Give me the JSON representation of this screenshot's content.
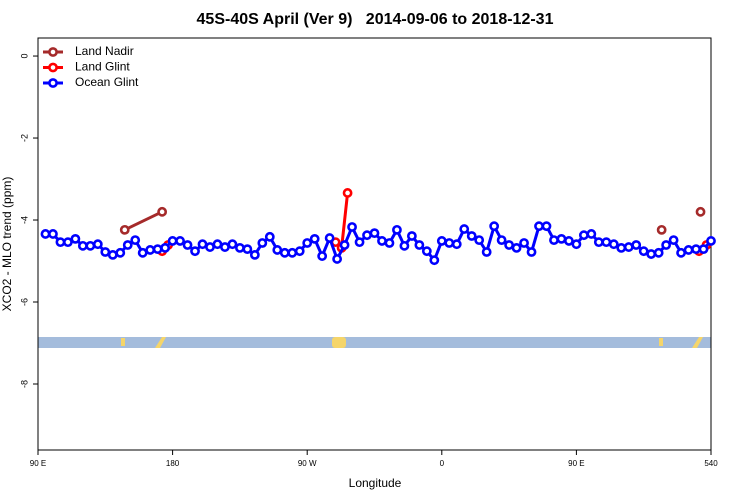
{
  "chart_data": {
    "type": "line",
    "title": "45S-40S April (Ver 9)   2014-09-06 to 2018-12-31",
    "x_label": "Longitude",
    "y_label": "XCO2 - MLO trend (ppm)",
    "xlim": [
      90,
      540
    ],
    "xticks": [
      {
        "value": 90,
        "label": "90 E"
      },
      180,
      {
        "value": 270,
        "label": "90 W"
      },
      {
        "value": 360,
        "label": "0"
      },
      {
        "value": 450,
        "label": "90 E"
      },
      540
    ],
    "ylim": [
      -9.61,
      0.44
    ],
    "yticks": [
      0,
      -2,
      -4,
      -6,
      -8
    ],
    "legend": "top-left",
    "series": [
      {
        "name": "Land Nadir",
        "color": "#a52a2a",
        "x": [
          148,
          173,
          null,
          507,
          null,
          533
        ],
        "values": [
          -4.24,
          -3.8,
          null,
          -4.24,
          null,
          -3.8
        ]
      },
      {
        "name": "Land Glint",
        "color": "#ff0000",
        "x": [
          173,
          177,
          null,
          289,
          293,
          297,
          null,
          532,
          537
        ],
        "values": [
          -4.76,
          -4.61,
          null,
          -4.54,
          -4.68,
          -3.34,
          null,
          -4.76,
          -4.61
        ]
      },
      {
        "name": "Ocean Glint",
        "color": "#0000ff",
        "x": [
          95,
          100,
          105,
          110,
          115,
          120,
          125,
          130,
          135,
          140,
          145,
          150,
          155,
          160,
          165,
          170,
          175,
          180,
          185,
          190,
          195,
          200,
          205,
          210,
          215,
          220,
          225,
          230,
          235,
          240,
          245,
          250,
          255,
          260,
          265,
          270,
          275,
          280,
          285,
          290,
          295,
          300,
          305,
          310,
          315,
          320,
          325,
          330,
          335,
          340,
          345,
          350,
          355,
          360,
          365,
          370,
          375,
          380,
          385,
          390,
          395,
          400,
          405,
          410,
          415,
          420,
          425,
          430,
          435,
          440,
          445,
          450,
          455,
          460,
          465,
          470,
          475,
          480,
          485,
          490,
          495,
          500,
          505,
          510,
          515,
          520,
          525,
          530,
          535,
          540
        ],
        "values": [
          -4.34,
          -4.34,
          -4.54,
          -4.54,
          -4.46,
          -4.63,
          -4.63,
          -4.59,
          -4.78,
          -4.85,
          -4.8,
          -4.61,
          -4.49,
          -4.8,
          -4.73,
          -4.71,
          -4.68,
          -4.51,
          -4.51,
          -4.61,
          -4.76,
          -4.59,
          -4.66,
          -4.59,
          -4.66,
          -4.59,
          -4.68,
          -4.71,
          -4.85,
          -4.56,
          -4.41,
          -4.73,
          -4.8,
          -4.8,
          -4.76,
          -4.56,
          -4.46,
          -4.88,
          -4.44,
          -4.95,
          -4.61,
          -4.17,
          -4.54,
          -4.37,
          -4.32,
          -4.51,
          -4.56,
          -4.24,
          -4.63,
          -4.39,
          -4.61,
          -4.76,
          -4.98,
          -4.51,
          -4.56,
          -4.59,
          -4.22,
          -4.39,
          -4.49,
          -4.78,
          -4.15,
          -4.49,
          -4.61,
          -4.68,
          -4.56,
          -4.78,
          -4.15,
          -4.15,
          -4.49,
          -4.46,
          -4.51,
          -4.59,
          -4.37,
          -4.34,
          -4.54,
          -4.54,
          -4.59,
          -4.68,
          -4.66,
          -4.61,
          -4.76,
          -4.83,
          -4.8,
          -4.61,
          -4.49,
          -4.8,
          -4.73,
          -4.71,
          -4.71,
          -4.51
        ]
      }
    ]
  }
}
